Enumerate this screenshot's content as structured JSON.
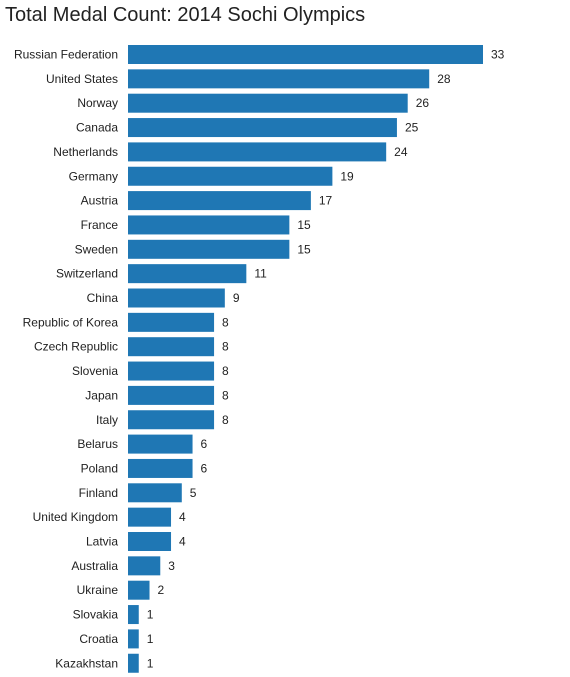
{
  "chart_data": {
    "type": "bar",
    "orientation": "horizontal",
    "title": "Total Medal Count: 2014 Sochi Olympics",
    "xlabel": "",
    "ylabel": "",
    "grid": false,
    "bar_color": "#1f77b4",
    "xlim": [
      0,
      33
    ],
    "categories": [
      "Russian Federation",
      "United States",
      "Norway",
      "Canada",
      "Netherlands",
      "Germany",
      "Austria",
      "France",
      "Sweden",
      "Switzerland",
      "China",
      "Republic of Korea",
      "Czech Republic",
      "Slovenia",
      "Japan",
      "Italy",
      "Belarus",
      "Poland",
      "Finland",
      "United Kingdom",
      "Latvia",
      "Australia",
      "Ukraine",
      "Slovakia",
      "Croatia",
      "Kazakhstan"
    ],
    "values": [
      33,
      28,
      26,
      25,
      24,
      19,
      17,
      15,
      15,
      11,
      9,
      8,
      8,
      8,
      8,
      8,
      6,
      6,
      5,
      4,
      4,
      3,
      2,
      1,
      1,
      1
    ]
  }
}
